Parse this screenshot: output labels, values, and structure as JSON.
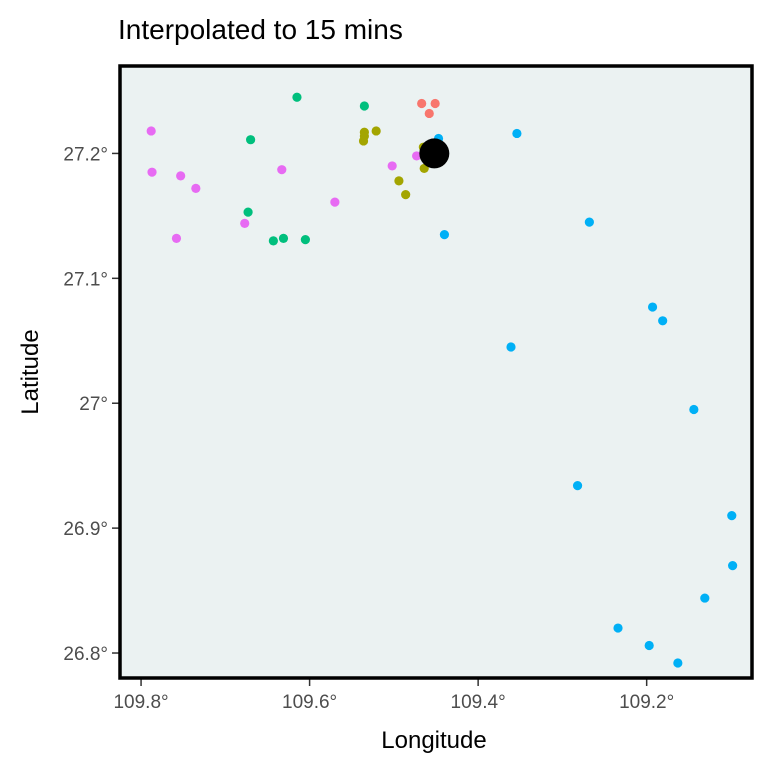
{
  "chart_data": {
    "type": "scatter",
    "title": "Interpolated to 15 mins",
    "xlabel": "Longitude",
    "ylabel": "Latitude",
    "xlim": [
      109.825,
      109.075
    ],
    "ylim": [
      27.27,
      26.78
    ],
    "x_reversed": true,
    "y_reversed": true,
    "x_ticks": [
      {
        "value": 109.8,
        "label": "109.8°"
      },
      {
        "value": 109.6,
        "label": "109.6°"
      },
      {
        "value": 109.4,
        "label": "109.4°"
      },
      {
        "value": 109.2,
        "label": "109.2°"
      }
    ],
    "y_ticks": [
      {
        "value": 26.8,
        "label": "26.8°"
      },
      {
        "value": 26.9,
        "label": "26.9°"
      },
      {
        "value": 27.0,
        "label": "27°"
      },
      {
        "value": 27.1,
        "label": "27.1°"
      },
      {
        "value": 27.2,
        "label": "27.2°"
      }
    ],
    "panel_background": "#ebf2f2",
    "grid": false,
    "legend": "none",
    "highlight": {
      "x": 109.452,
      "y": 27.2,
      "color": "#000000"
    },
    "series": [
      {
        "color": "#f8766d",
        "points": [
          [
            109.458,
            27.232
          ],
          [
            109.467,
            27.24
          ],
          [
            109.451,
            27.24
          ]
        ]
      },
      {
        "color": "#a3a500",
        "points": [
          [
            109.486,
            27.167
          ],
          [
            109.494,
            27.178
          ],
          [
            109.464,
            27.188
          ],
          [
            109.46,
            27.196
          ],
          [
            109.465,
            27.205
          ],
          [
            109.536,
            27.21
          ],
          [
            109.535,
            27.214
          ],
          [
            109.535,
            27.217
          ],
          [
            109.521,
            27.218
          ],
          [
            109.46,
            27.2
          ]
        ]
      },
      {
        "color": "#00bf7d",
        "points": [
          [
            109.643,
            27.13
          ],
          [
            109.631,
            27.132
          ],
          [
            109.605,
            27.131
          ],
          [
            109.673,
            27.153
          ],
          [
            109.67,
            27.211
          ],
          [
            109.535,
            27.238
          ],
          [
            109.615,
            27.245
          ]
        ]
      },
      {
        "color": "#00b0f6",
        "points": [
          [
            109.163,
            26.792
          ],
          [
            109.197,
            26.806
          ],
          [
            109.234,
            26.82
          ],
          [
            109.131,
            26.844
          ],
          [
            109.098,
            26.87
          ],
          [
            109.099,
            26.91
          ],
          [
            109.282,
            26.934
          ],
          [
            109.144,
            26.995
          ],
          [
            109.361,
            27.045
          ],
          [
            109.181,
            27.066
          ],
          [
            109.193,
            27.077
          ],
          [
            109.44,
            27.135
          ],
          [
            109.268,
            27.145
          ],
          [
            109.354,
            27.216
          ],
          [
            109.447,
            27.212
          ]
        ]
      },
      {
        "color": "#e76bf3",
        "points": [
          [
            109.758,
            27.132
          ],
          [
            109.677,
            27.144
          ],
          [
            109.57,
            27.161
          ],
          [
            109.735,
            27.172
          ],
          [
            109.753,
            27.182
          ],
          [
            109.787,
            27.185
          ],
          [
            109.633,
            27.187
          ],
          [
            109.502,
            27.19
          ],
          [
            109.473,
            27.198
          ],
          [
            109.788,
            27.218
          ]
        ]
      }
    ]
  }
}
